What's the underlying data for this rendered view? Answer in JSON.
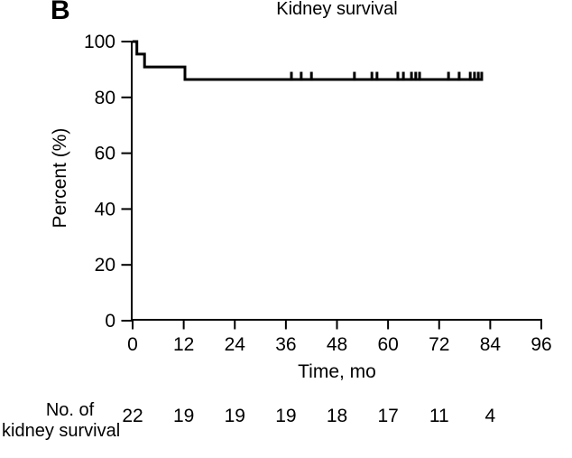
{
  "chart_data": {
    "type": "line",
    "subtype": "kaplan_meier_step_function",
    "panel_label": "B",
    "title": "Kidney survival",
    "xlabel": "Time, mo",
    "ylabel": "Percent (%)",
    "xlim": [
      0,
      96
    ],
    "ylim": [
      0,
      100
    ],
    "x_ticks": [
      0,
      12,
      24,
      36,
      48,
      60,
      72,
      84,
      96
    ],
    "y_ticks": [
      0,
      20,
      40,
      60,
      80,
      100
    ],
    "grid": false,
    "legend": "none",
    "line_color": "#000000",
    "background_color": "#ffffff",
    "series": [
      {
        "name": "Kidney survival",
        "step_points": [
          [
            0,
            100
          ],
          [
            1,
            100
          ],
          [
            1,
            95.5
          ],
          [
            2.8,
            95.5
          ],
          [
            2.8,
            90.9
          ],
          [
            12.3,
            90.9
          ],
          [
            12.3,
            86.4
          ],
          [
            82,
            86.4
          ]
        ],
        "censor_marks_mo": [
          37.3,
          39.6,
          42.0,
          52.1,
          56.2,
          57.4,
          62.3,
          63.6,
          65.5,
          66.5,
          67.4,
          74.2,
          76.7,
          79.3,
          80.3,
          81.2,
          82.0
        ],
        "censor_level_pct": 86.4
      }
    ],
    "at_risk": {
      "label_line1": "No. of",
      "label_line2": "kidney survival",
      "times_mo": [
        0,
        12,
        24,
        36,
        48,
        60,
        72,
        84
      ],
      "counts": [
        22,
        19,
        19,
        19,
        18,
        17,
        11,
        4
      ]
    }
  }
}
